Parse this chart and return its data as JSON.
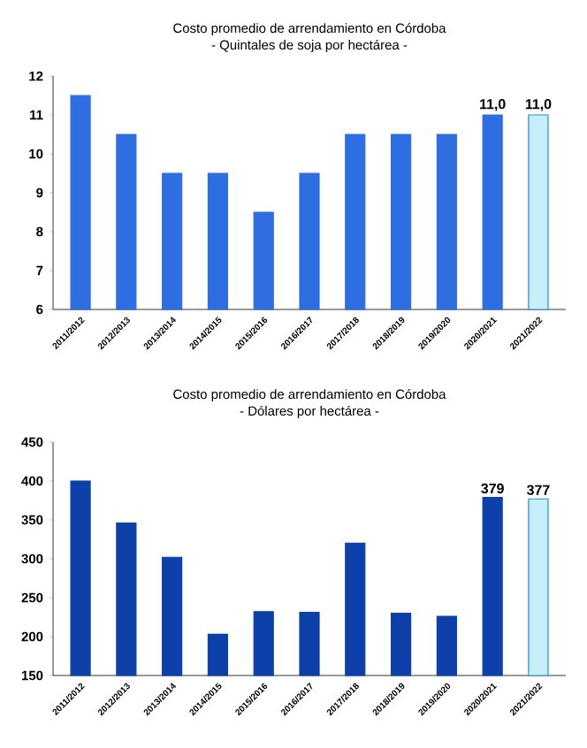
{
  "chart_data": [
    {
      "type": "bar",
      "title": "Costo promedio de arrendamiento en Córdoba",
      "subtitle": "- Quintales de soja por hectárea -",
      "categories": [
        "2011/2012",
        "2012/2013",
        "2013/2014",
        "2014/2015",
        "2015/2016",
        "2016/2017",
        "2017/2018",
        "2018/2019",
        "2019/2020",
        "2020/2021",
        "2021/2022"
      ],
      "values": [
        11.5,
        10.5,
        9.5,
        9.5,
        8.5,
        9.5,
        10.5,
        10.5,
        10.5,
        11.0,
        11.0
      ],
      "value_labels": [
        null,
        null,
        null,
        null,
        null,
        null,
        null,
        null,
        null,
        "11,0",
        "11,0"
      ],
      "colors": [
        "#2e6ee0",
        "#2e6ee0",
        "#2e6ee0",
        "#2e6ee0",
        "#2e6ee0",
        "#2e6ee0",
        "#2e6ee0",
        "#2e6ee0",
        "#2e6ee0",
        "#2e6ee0",
        "#c8eefc"
      ],
      "ylim": [
        6,
        12
      ],
      "yticks": [
        6,
        7,
        8,
        9,
        10,
        11,
        12
      ]
    },
    {
      "type": "bar",
      "title": "Costo promedio de arrendamiento en Córdoba",
      "subtitle": "- Dólares por hectárea -",
      "categories": [
        "2011/2012",
        "2012/2013",
        "2013/2014",
        "2014/2015",
        "2015/2016",
        "2016/2017",
        "2017/2018",
        "2018/2019",
        "2019/2020",
        "2020/2021",
        "2021/2022"
      ],
      "values": [
        400,
        346,
        302,
        203,
        232,
        231,
        320,
        230,
        226,
        379,
        377
      ],
      "value_labels": [
        null,
        null,
        null,
        null,
        null,
        null,
        null,
        null,
        null,
        "379",
        "377"
      ],
      "colors": [
        "#0d40a8",
        "#0d40a8",
        "#0d40a8",
        "#0d40a8",
        "#0d40a8",
        "#0d40a8",
        "#0d40a8",
        "#0d40a8",
        "#0d40a8",
        "#0d40a8",
        "#c8eefc"
      ],
      "ylim": [
        150,
        450
      ],
      "yticks": [
        150,
        200,
        250,
        300,
        350,
        400,
        450
      ]
    }
  ]
}
